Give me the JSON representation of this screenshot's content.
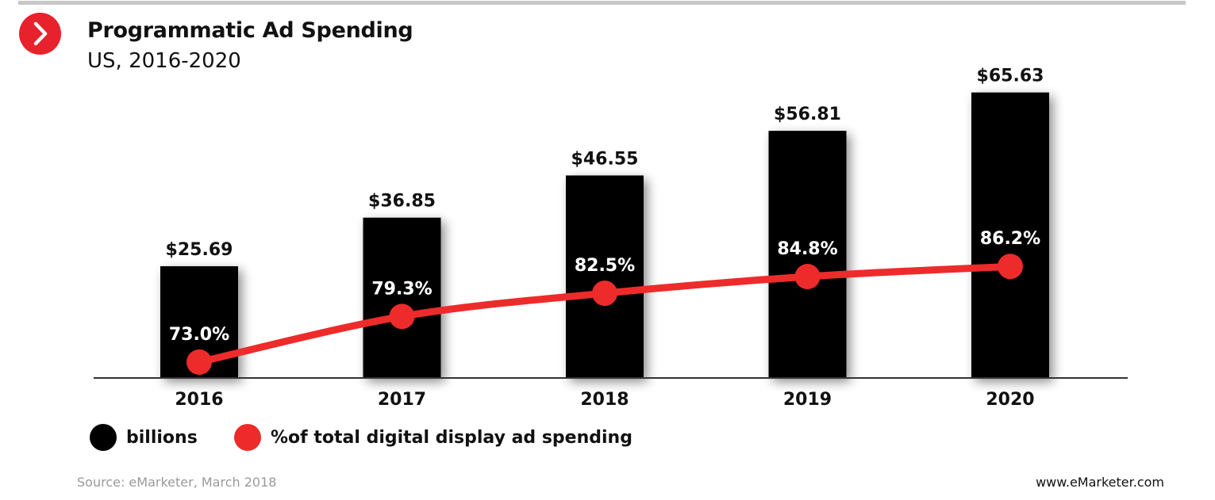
{
  "header": {
    "title": "Programmatic Ad Spending",
    "subtitle": "US, 2016-2020",
    "badge_icon": "chevron-right-icon"
  },
  "chart_data": {
    "type": "bar",
    "categories": [
      "2016",
      "2017",
      "2018",
      "2019",
      "2020"
    ],
    "series": [
      {
        "name": "billions",
        "kind": "bar",
        "values": [
          25.69,
          36.85,
          46.55,
          56.81,
          65.63
        ],
        "labels": [
          "$25.69",
          "$36.85",
          "$46.55",
          "$56.81",
          "$65.63"
        ],
        "color": "#000000"
      },
      {
        "name": "%of total digital display ad spending",
        "kind": "line",
        "values": [
          73.0,
          79.3,
          82.5,
          84.8,
          86.2
        ],
        "labels": [
          "73.0%",
          "79.3%",
          "82.5%",
          "84.8%",
          "86.2%"
        ],
        "color": "#ee2b2b"
      }
    ],
    "grid": false,
    "legend_position": "bottom-left"
  },
  "footer": {
    "source": "Source: eMarketer, March 2018",
    "site": "www.eMarketer.com"
  },
  "colors": {
    "accent": "#e8222c",
    "bar": "#000000",
    "line": "#ee2b2b"
  }
}
